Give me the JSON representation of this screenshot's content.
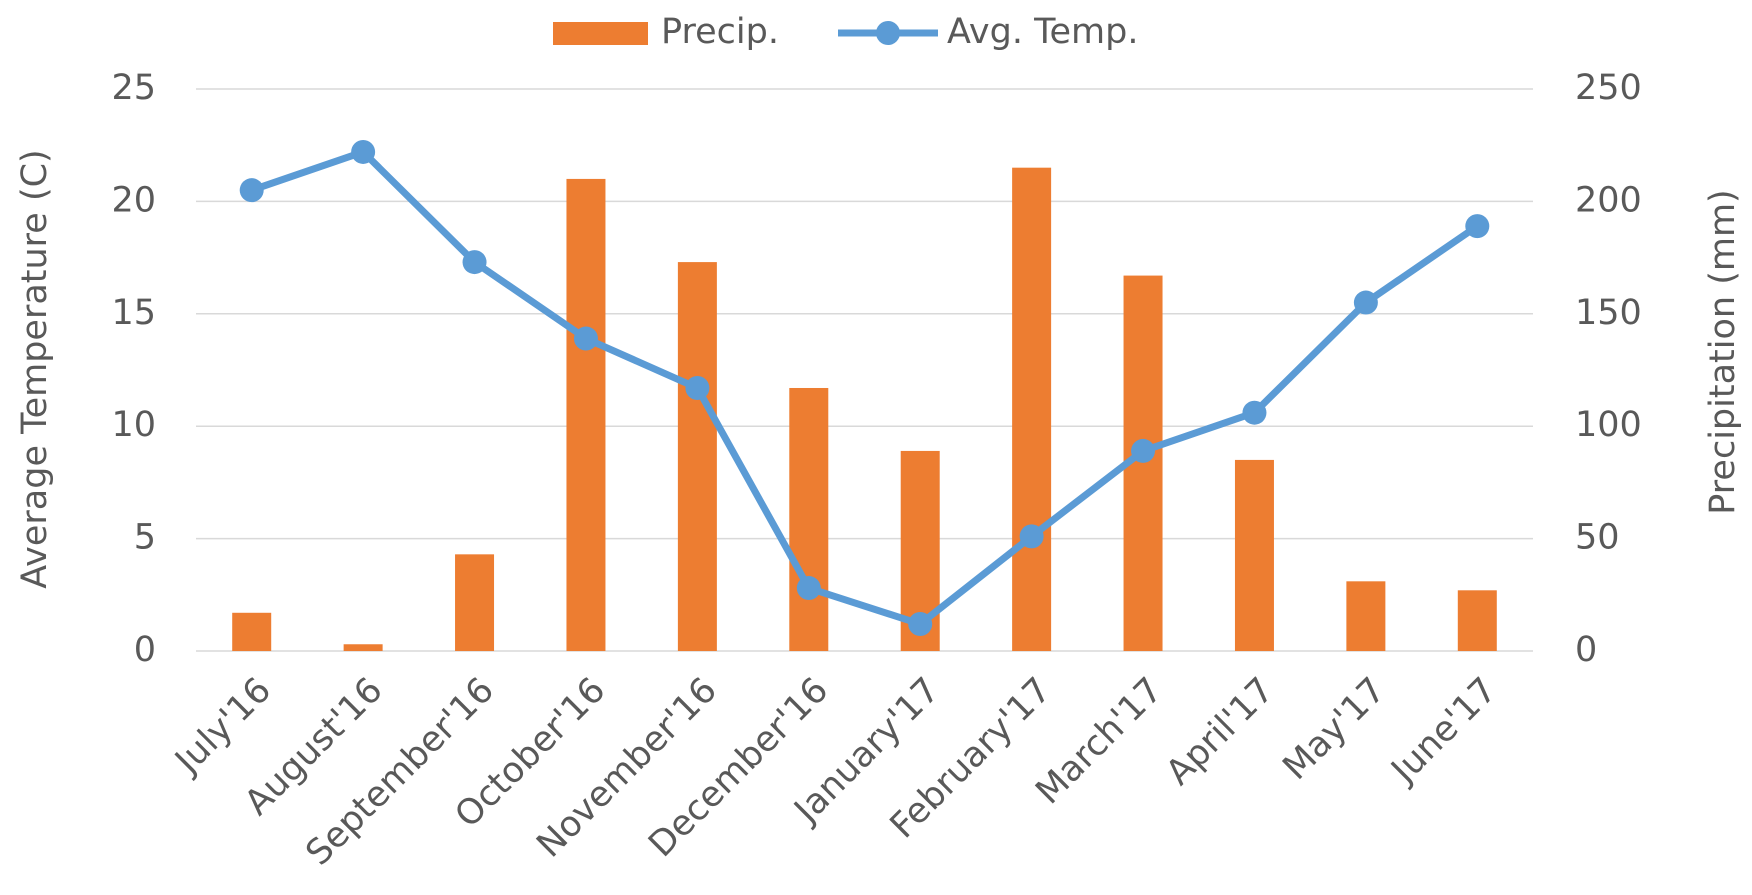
{
  "chart_data": {
    "type": "bar",
    "categories": [
      "July'16",
      "August'16",
      "September'16",
      "October'16",
      "November'16",
      "December'16",
      "January'17",
      "February'17",
      "March'17",
      "April'17",
      "May'17",
      "June'17"
    ],
    "series": [
      {
        "name": "Precip.",
        "type": "bar",
        "color": "#ed7d31",
        "axis": "y2",
        "values": [
          17,
          3,
          43,
          210,
          173,
          117,
          89,
          215,
          167,
          85,
          31,
          27
        ]
      },
      {
        "name": "Avg. Temp.",
        "type": "line",
        "color": "#5b9bd5",
        "axis": "y",
        "values": [
          20.5,
          22.2,
          17.3,
          13.9,
          11.7,
          2.8,
          1.2,
          5.1,
          8.9,
          10.6,
          15.5,
          18.9
        ]
      }
    ],
    "ylabel": "Average Temperature (C)",
    "y2label": "Precipitation (mm)",
    "ylim": [
      0,
      25
    ],
    "yticks": [
      0,
      5,
      10,
      15,
      20,
      25
    ],
    "y2lim": [
      0,
      250
    ],
    "y2ticks": [
      0,
      50,
      100,
      150,
      200,
      250
    ],
    "grid": true,
    "legend": "top"
  }
}
